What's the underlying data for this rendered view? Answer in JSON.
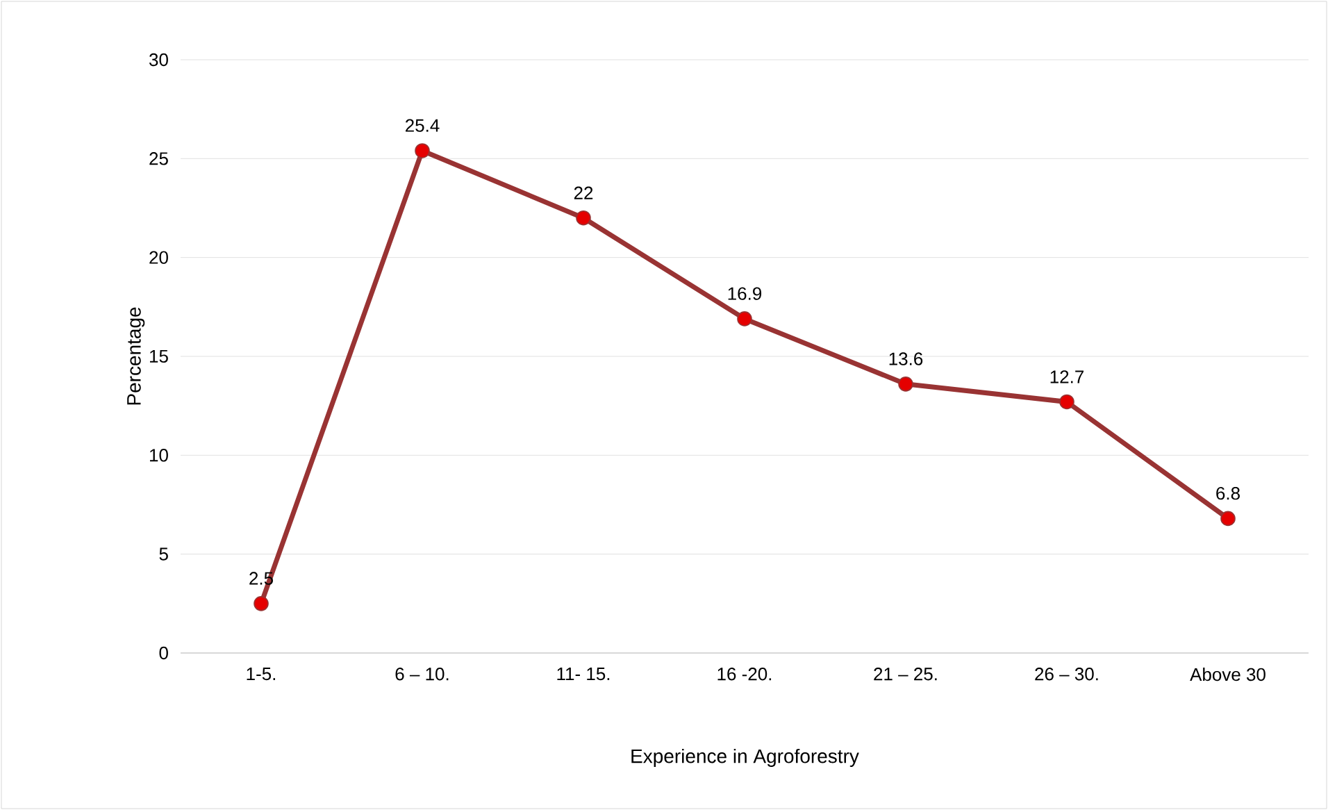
{
  "chart_data": {
    "type": "line",
    "xlabel": "Experience in Agroforestry",
    "ylabel": "Percentage",
    "categories": [
      "1-5.",
      "6 – 10.",
      "11- 15.",
      "16 -20.",
      "21 – 25.",
      "26 – 30.",
      "Above 30"
    ],
    "values": [
      2.5,
      25.4,
      22,
      16.9,
      13.6,
      12.7,
      6.8
    ],
    "color": "#993333",
    "marker": "circle",
    "line_style": "solid",
    "ylim": [
      0,
      30
    ],
    "yticks": [
      0,
      5,
      10,
      15,
      20,
      25,
      30
    ],
    "grid": "y",
    "data_labels": true
  }
}
